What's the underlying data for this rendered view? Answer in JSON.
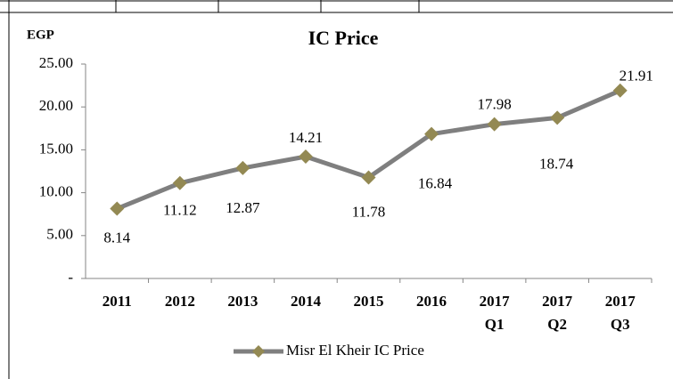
{
  "chart_data": {
    "type": "line",
    "title": "IC Price",
    "y_axis_label": "EGP",
    "categories": [
      [
        "2011"
      ],
      [
        "2012"
      ],
      [
        "2013"
      ],
      [
        "2014"
      ],
      [
        "2015"
      ],
      [
        "2016"
      ],
      [
        "2017",
        "Q1"
      ],
      [
        "2017",
        "Q2"
      ],
      [
        "2017",
        "Q3"
      ]
    ],
    "series": [
      {
        "name": "Misr El Kheir IC Price",
        "color": "#7f7f7f",
        "marker_color": "#938953",
        "values": [
          8.14,
          11.12,
          12.87,
          14.21,
          11.78,
          16.84,
          17.98,
          18.74,
          21.91
        ]
      }
    ],
    "ylim": [
      0,
      25
    ],
    "yticks": [
      {
        "value": 0,
        "label": "-"
      },
      {
        "value": 5,
        "label": "5.00"
      },
      {
        "value": 10,
        "label": "10.00"
      },
      {
        "value": 15,
        "label": "15.00"
      },
      {
        "value": 20,
        "label": "20.00"
      },
      {
        "value": 25,
        "label": "25.00"
      }
    ],
    "grid": false,
    "legend": "bottom"
  }
}
